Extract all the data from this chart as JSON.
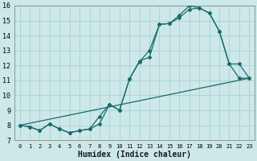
{
  "xlabel": "Humidex (Indice chaleur)",
  "bg_color": "#cce8e8",
  "line_color": "#1a6b6b",
  "grid_color": "#afd4d4",
  "xlim": [
    -0.5,
    23.5
  ],
  "ylim": [
    7,
    16
  ],
  "xticks": [
    0,
    1,
    2,
    3,
    4,
    5,
    6,
    7,
    8,
    9,
    10,
    11,
    12,
    13,
    14,
    15,
    16,
    17,
    18,
    19,
    20,
    21,
    22,
    23
  ],
  "yticks": [
    7,
    8,
    9,
    10,
    11,
    12,
    13,
    14,
    15,
    16
  ],
  "line1_x": [
    0,
    1,
    2,
    3,
    4,
    5,
    6,
    7,
    8,
    9,
    10,
    11,
    12,
    13,
    14,
    15,
    16,
    17,
    18,
    19,
    20,
    21,
    22,
    23
  ],
  "line1_y": [
    8.0,
    7.9,
    7.65,
    8.1,
    7.75,
    7.5,
    7.65,
    7.75,
    8.6,
    9.4,
    9.0,
    11.1,
    12.3,
    12.55,
    14.75,
    14.8,
    15.2,
    15.75,
    15.85,
    15.5,
    14.3,
    12.1,
    12.1,
    11.15
  ],
  "line2_x": [
    0,
    1,
    2,
    3,
    4,
    5,
    6,
    7,
    8,
    9,
    10,
    11,
    12,
    13,
    14,
    15,
    16,
    17,
    18,
    19,
    20,
    21,
    22,
    23
  ],
  "line2_y": [
    8.0,
    7.9,
    7.65,
    8.1,
    7.75,
    7.5,
    7.65,
    7.75,
    8.1,
    9.4,
    9.0,
    11.1,
    12.25,
    13.0,
    14.75,
    14.8,
    15.35,
    16.0,
    15.85,
    15.5,
    14.3,
    12.1,
    11.15,
    11.15
  ],
  "line3_x": [
    0,
    23
  ],
  "line3_y": [
    8.0,
    11.15
  ]
}
